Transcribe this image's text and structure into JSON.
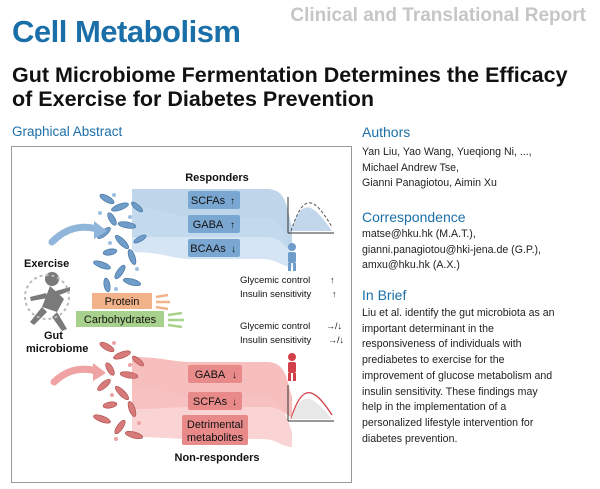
{
  "journal": "Cell Metabolism",
  "report_type": "Clinical and Translational Report",
  "title": "Gut Microbiome Fermentation Determines the Efficacy of Exercise for Diabetes Prevention",
  "graphical_abstract_label": "Graphical Abstract",
  "abstract": {
    "responders": "Responders",
    "non_responders": "Non-responders",
    "exercise": "Exercise",
    "gut": "Gut",
    "microbiome": "microbiome",
    "protein": "Protein",
    "carbohydrates": "Carbohydrates",
    "resp_box1": "SCFAs",
    "resp_box2": "GABA",
    "resp_box3": "BCAAs",
    "non_box1": "GABA",
    "non_box2": "SCFAs",
    "non_box3a": "Detrimental",
    "non_box3b": "metabolites",
    "resp_glycemic": "Glycemic control",
    "resp_insulin": "Insulin sensitivity",
    "non_glycemic": "Glycemic control",
    "non_insulin": "Insulin sensitivity",
    "colors": {
      "responder_blue": "#a9c7e2",
      "responder_dark": "#4f86b8",
      "non_red": "#f4a8a8",
      "non_dark": "#d2404a",
      "protein": "#f2b28a",
      "carbohydrates": "#a9d18e"
    }
  },
  "authors_heading": "Authors",
  "authors_lines": [
    "Yan Liu, Yao Wang, Yueqiong Ni, ...,",
    "Michael Andrew Tse,",
    "Gianni Panagiotou, Aimin Xu"
  ],
  "correspondence_heading": "Correspondence",
  "correspondence_lines": [
    "matse@hku.hk (M.A.T.),",
    "gianni.panagiotou@hki-jena.de (G.P.),",
    "amxu@hku.hk (A.X.)"
  ],
  "brief_heading": "In Brief",
  "brief_lines": [
    "Liu et al. identify the gut microbiota as an",
    "important determinant in the",
    "responsiveness of individuals with",
    "prediabetes to exercise for the",
    "improvement of glucose metabolism and",
    "insulin sensitivity. These findings may",
    "help in the implementation of a",
    "personalized lifestyle intervention for",
    "diabetes prevention."
  ]
}
